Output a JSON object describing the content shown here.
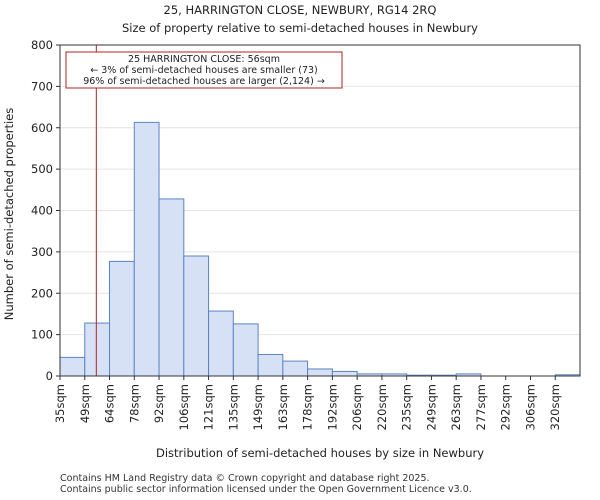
{
  "chart_data": {
    "type": "bar",
    "title": "25, HARRINGTON CLOSE, NEWBURY, RG14 2RQ",
    "subtitle": "Size of property relative to semi-detached houses in Newbury",
    "xlabel": "Distribution of semi-detached houses by size in Newbury",
    "ylabel": "Number of semi-detached properties",
    "ylim": [
      0,
      800
    ],
    "yticks": [
      0,
      100,
      200,
      300,
      400,
      500,
      600,
      700,
      800
    ],
    "bin_edges": [
      35,
      49,
      64,
      78,
      92,
      106,
      121,
      135,
      149,
      163,
      178,
      192,
      206,
      220,
      235,
      249,
      263,
      277,
      292,
      306,
      320
    ],
    "categories": [
      "35sqm",
      "49sqm",
      "64sqm",
      "78sqm",
      "92sqm",
      "106sqm",
      "121sqm",
      "135sqm",
      "149sqm",
      "163sqm",
      "178sqm",
      "192sqm",
      "206sqm",
      "220sqm",
      "235sqm",
      "249sqm",
      "263sqm",
      "277sqm",
      "292sqm",
      "306sqm",
      "320sqm"
    ],
    "values": [
      45,
      128,
      277,
      613,
      428,
      290,
      157,
      126,
      52,
      36,
      17,
      11,
      5,
      5,
      2,
      2,
      5,
      0,
      0,
      0,
      3
    ],
    "bar_color": "#d6e1f5",
    "bar_edge_color": "#5b84c4",
    "marker": {
      "value": 56,
      "color": "#b22222",
      "annotation": [
        "25 HARRINGTON CLOSE: 56sqm",
        "← 3% of semi-detached houses are smaller (73)",
        "96% of semi-detached houses are larger (2,124) →"
      ]
    }
  },
  "footer": {
    "line1": "Contains HM Land Registry data © Crown copyright and database right 2025.",
    "line2": "Contains public sector information licensed under the Open Government Licence v3.0."
  }
}
